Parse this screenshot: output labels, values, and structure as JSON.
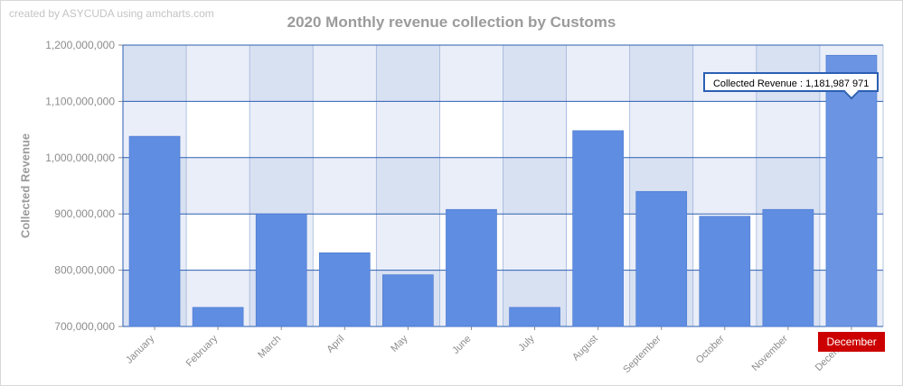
{
  "credit": "created by ASYCUDA using amcharts.com",
  "colors": {
    "bar": "#5f8de1",
    "band_dark": "#d8e1f2",
    "band_light": "#eaeef8",
    "grid": "#2b5fb3",
    "tooltip_border": "#2b5fb3",
    "cursor_label": "#cc0000"
  },
  "tooltip": {
    "text": "Collected Revenue : 1,181,987,971"
  },
  "cursor": {
    "label": "December"
  },
  "chart_data": {
    "type": "bar",
    "title": "2020 Monthly revenue collection by Customs",
    "xlabel": "",
    "ylabel": "Collected Revenue",
    "ylim": [
      700000000,
      1200000000
    ],
    "yticks": [
      {
        "value": 700000000,
        "label": "700,000,000"
      },
      {
        "value": 800000000,
        "label": "800,000,000"
      },
      {
        "value": 900000000,
        "label": "900,000,000"
      },
      {
        "value": 1000000000,
        "label": "1,000,000,000"
      },
      {
        "value": 1100000000,
        "label": "1,100,000,000"
      },
      {
        "value": 1200000000,
        "label": "1,200,000,000"
      }
    ],
    "categories": [
      "January",
      "February",
      "March",
      "April",
      "May",
      "June",
      "July",
      "August",
      "September",
      "October",
      "November",
      "December"
    ],
    "series": [
      {
        "values": [
          1038000000,
          734000000,
          900000000,
          831000000,
          792000000,
          908000000,
          734000000,
          1048000000,
          940000000,
          896000000,
          908000000,
          1181987971
        ]
      }
    ],
    "grid": true
  }
}
